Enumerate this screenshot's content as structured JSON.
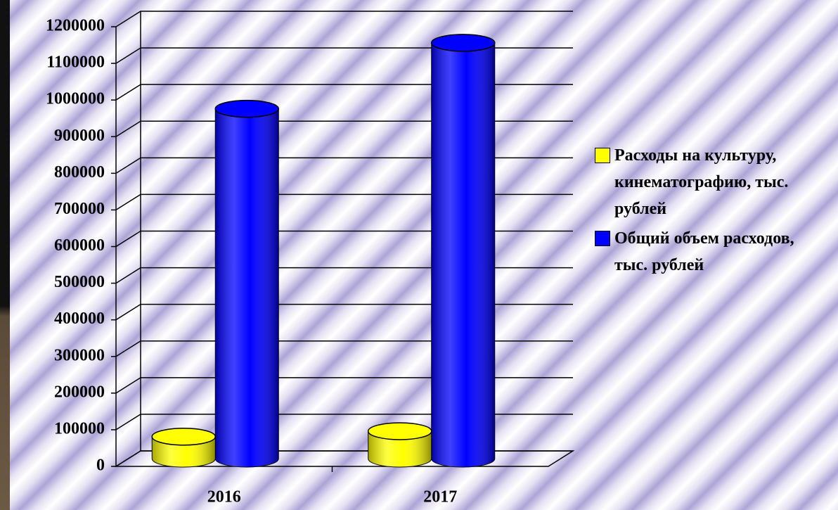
{
  "chart_data": {
    "type": "bar",
    "categories": [
      "2016",
      "2017"
    ],
    "series": [
      {
        "name": "Расходы на культуру, кинематографию, тыс. рублей",
        "color": "#ffff00",
        "values": [
          60000,
          75000
        ]
      },
      {
        "name": "Общий объем расходов, тыс. рублей",
        "color": "#0000ff",
        "values": [
          955000,
          1135000
        ]
      }
    ],
    "ylim": [
      0,
      1200000
    ],
    "yticks": [
      0,
      100000,
      200000,
      300000,
      400000,
      500000,
      600000,
      700000,
      800000,
      900000,
      1000000,
      1100000,
      1200000
    ],
    "grid": true,
    "legend": "right"
  }
}
